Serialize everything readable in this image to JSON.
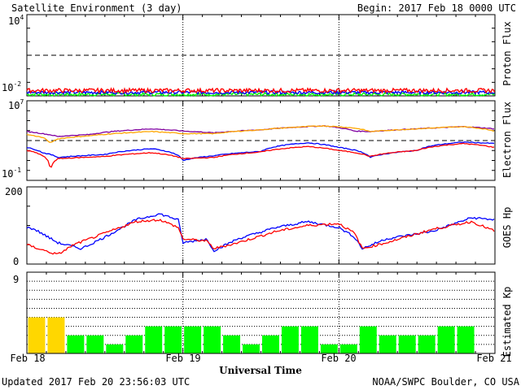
{
  "header": {
    "title": "Satellite Environment (3 day)",
    "begin": "Begin:  2017 Feb 18 0000 UTC"
  },
  "footer": {
    "updated": "Updated 2017 Feb 20 23:56:03 UTC",
    "credit": "NOAA/SWPC Boulder, CO USA"
  },
  "colors": {
    "red": "#ff0000",
    "blue": "#0000ff",
    "green": "#00ff00",
    "orange": "#ffa500",
    "purple": "#8000a0",
    "kp_yellow": "#ffd700",
    "kp_green": "#00ff00"
  },
  "chart_data": [
    {
      "type": "line",
      "ylabel": "Proton Flux",
      "yscale": "log",
      "ylim": [
        0.01,
        10000
      ],
      "ytick_labels": [
        {
          "base": "10",
          "exp": "4"
        },
        {
          "base": "10",
          "exp": "-2"
        }
      ],
      "threshold": 10,
      "x_days": [
        0,
        3
      ],
      "series": [
        {
          "color": "#ff0000",
          "level": 0.025,
          "noise": 0.15
        },
        {
          "color": "#0000ff",
          "level": 0.018,
          "noise": 0.12
        },
        {
          "color": "#00ff00",
          "level": 0.013,
          "noise": 0.12
        }
      ]
    },
    {
      "type": "line",
      "ylabel": "Electron Flux",
      "yscale": "log",
      "ylim": [
        0.1,
        10000000
      ],
      "ytick_labels": [
        {
          "base": "10",
          "exp": "7"
        },
        {
          "base": "10",
          "exp": "-1"
        }
      ],
      "threshold": 1000,
      "x_days": [
        0,
        3
      ],
      "series": [
        {
          "color": "#8000a0",
          "x": [
            0,
            0.1,
            0.2,
            0.25,
            0.4,
            0.8,
            1.0,
            1.2,
            1.5,
            1.9,
            2.1,
            2.2,
            2.5,
            2.8,
            3.0
          ],
          "y": [
            8000,
            5000,
            2500,
            3000,
            4000,
            15000,
            9000,
            6000,
            12000,
            30000,
            9000,
            8000,
            15000,
            25000,
            15000
          ]
        },
        {
          "color": "#ffa500",
          "x": [
            0,
            0.1,
            0.15,
            0.2,
            0.4,
            0.8,
            1.0,
            1.2,
            1.5,
            1.9,
            2.1,
            2.2,
            2.5,
            2.8,
            3.0
          ],
          "y": [
            4000,
            2000,
            500,
            1500,
            3000,
            8000,
            5000,
            5000,
            12000,
            30000,
            18000,
            8000,
            15000,
            25000,
            9000
          ]
        },
        {
          "color": "#0000ff",
          "x": [
            0,
            0.1,
            0.2,
            0.5,
            0.8,
            1.0,
            1.2,
            1.5,
            1.8,
            2.0,
            2.2,
            2.5,
            2.8,
            3.0
          ],
          "y": [
            200,
            60,
            20,
            40,
            150,
            10,
            30,
            80,
            600,
            200,
            20,
            100,
            700,
            500
          ]
        },
        {
          "color": "#ff0000",
          "x": [
            0,
            0.1,
            0.15,
            0.2,
            0.5,
            0.8,
            1.0,
            1.2,
            1.5,
            1.8,
            2.0,
            2.2,
            2.5,
            2.8,
            3.0
          ],
          "y": [
            100,
            30,
            0.3,
            15,
            25,
            60,
            15,
            20,
            70,
            250,
            100,
            25,
            100,
            500,
            200
          ]
        }
      ]
    },
    {
      "type": "line",
      "ylabel": "GOES Hp",
      "ylim": [
        0,
        200
      ],
      "ytick_labels": [
        "200",
        "0"
      ],
      "x_days": [
        0,
        3
      ],
      "series": [
        {
          "color": "#0000ff",
          "x": [
            0,
            0.05,
            0.2,
            0.35,
            0.5,
            0.7,
            0.85,
            0.97,
            1.0,
            1.15,
            1.2,
            1.35,
            1.6,
            1.8,
            2.0,
            2.1,
            2.15,
            2.3,
            2.6,
            2.85,
            3.0
          ],
          "y": [
            95,
            90,
            55,
            40,
            70,
            115,
            130,
            115,
            55,
            65,
            35,
            65,
            95,
            110,
            95,
            70,
            40,
            65,
            85,
            120,
            115
          ]
        },
        {
          "color": "#ff0000",
          "x": [
            0,
            0.15,
            0.2,
            0.3,
            0.5,
            0.7,
            0.85,
            0.97,
            1.0,
            1.15,
            1.2,
            1.35,
            1.6,
            1.8,
            2.0,
            2.1,
            2.15,
            2.3,
            2.6,
            2.85,
            3.0
          ],
          "y": [
            50,
            30,
            25,
            50,
            80,
            110,
            115,
            95,
            65,
            60,
            40,
            55,
            85,
            100,
            105,
            80,
            40,
            55,
            90,
            110,
            85
          ]
        }
      ]
    },
    {
      "type": "bar",
      "ylabel": "Estimated Kp",
      "ylim": [
        0,
        9
      ],
      "ytick_labels": [
        "9"
      ],
      "threshold_yellow": 4,
      "values": [
        4,
        4,
        2,
        2,
        1,
        2,
        3,
        3,
        3,
        3,
        2,
        1,
        2,
        3,
        3,
        1,
        1,
        3,
        2,
        2,
        2,
        3,
        3,
        0
      ]
    }
  ],
  "xaxis": {
    "labels": [
      "Feb 18",
      "Feb 19",
      "Feb 20",
      "Feb 21"
    ],
    "title": "Universal Time"
  }
}
